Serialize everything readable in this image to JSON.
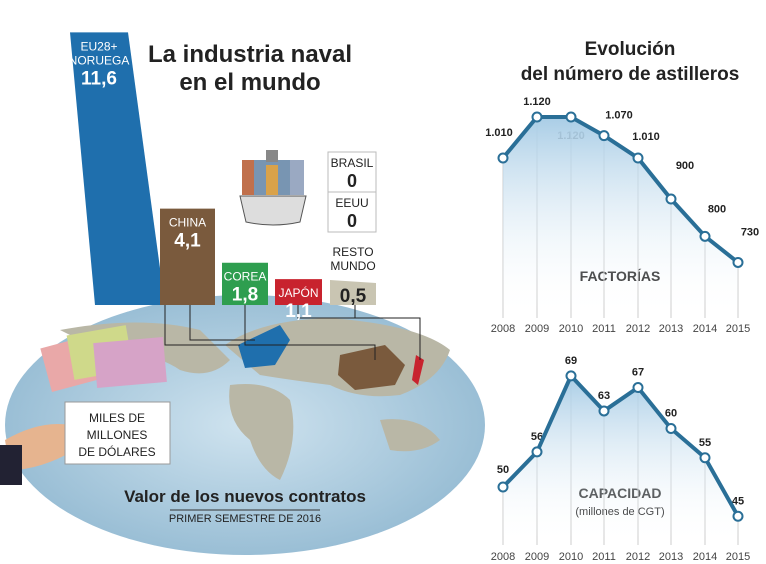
{
  "left_title": [
    "La industria naval",
    "en el mundo"
  ],
  "chart_data": [
    {
      "type": "bar",
      "title": "La industria naval en el mundo",
      "subtitle": "Valor de los nuevos contratos",
      "note": "PRIMER SEMESTRE DE 2016",
      "unit_label": [
        "MILES DE",
        "MILLONES",
        "DE DÓLARES"
      ],
      "bars": [
        {
          "label": [
            "EU28+",
            "NORUEGA"
          ],
          "value": 11.6,
          "display": "11,6",
          "color": "#1f6fad"
        },
        {
          "label": [
            "CHINA"
          ],
          "value": 4.1,
          "display": "4,1",
          "color": "#7a5a3d"
        },
        {
          "label": [
            "COREA"
          ],
          "value": 1.8,
          "display": "1,8",
          "color": "#2e9e4f"
        },
        {
          "label": [
            "JAPÓN"
          ],
          "value": 1.1,
          "display": "1,1",
          "color": "#c8232e"
        },
        {
          "label": [
            "RESTO",
            "MUNDO"
          ],
          "value": 0.5,
          "display": "0,5",
          "color": "#c9c5b2"
        }
      ],
      "zero_entries": [
        {
          "label": "BRASIL",
          "value": 0,
          "display": "0"
        },
        {
          "label": "EEUU",
          "value": 0,
          "display": "0"
        }
      ]
    },
    {
      "type": "line",
      "title": [
        "Evolución",
        "del número de astilleros"
      ],
      "label": "FACTORÍAS",
      "x": [
        "2008",
        "2009",
        "2010",
        "2011",
        "2012",
        "2013",
        "2014",
        "2015"
      ],
      "values": [
        1010,
        1120,
        1120,
        1070,
        1010,
        900,
        800,
        730
      ],
      "labels": [
        "1.010",
        "1.120",
        "1.120",
        "1.070",
        "1.010",
        "900",
        "800",
        "730"
      ],
      "color": "#2a6f97"
    },
    {
      "type": "line",
      "label": "CAPACIDAD",
      "sublabel": "(millones de CGT)",
      "x": [
        "2008",
        "2009",
        "2010",
        "2011",
        "2012",
        "2013",
        "2014",
        "2015"
      ],
      "values": [
        50,
        56,
        69,
        63,
        67,
        60,
        55,
        45
      ],
      "labels": [
        "50",
        "56",
        "69",
        "63",
        "67",
        "60",
        "55",
        "45"
      ],
      "color": "#2a6f97"
    }
  ]
}
